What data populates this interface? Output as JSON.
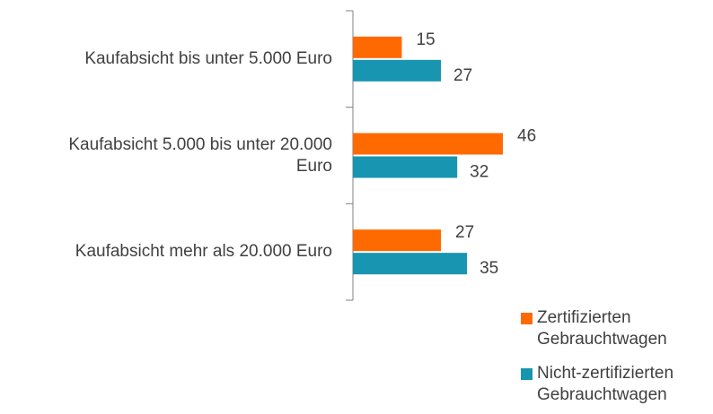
{
  "chart_data": {
    "type": "bar",
    "orientation": "horizontal",
    "categories": [
      "Kaufabsicht bis unter 5.000 Euro",
      "Kaufabsicht 5.000 bis unter 20.000 Euro",
      "Kaufabsicht mehr als 20.000 Euro"
    ],
    "series": [
      {
        "name": "Zertifizierten Gebrauchtwagen",
        "color": "#ff6a00",
        "values": [
          15,
          46,
          27
        ]
      },
      {
        "name": "Nicht-zertifizierten Gebrauchtwagen",
        "color": "#1895b0",
        "values": [
          27,
          32,
          35
        ]
      }
    ],
    "legend": "bottom-right"
  }
}
